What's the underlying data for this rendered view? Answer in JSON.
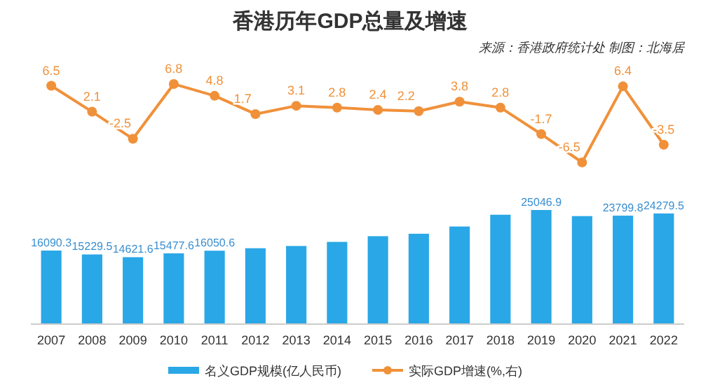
{
  "chart_data": [
    {
      "type": "line",
      "title": "香港历年GDP总量及增速",
      "annotations": [
        "来源：香港政府统计处  制图：北海居"
      ],
      "categories": [
        null,
        null,
        null,
        null,
        null,
        null,
        null,
        null,
        null,
        null,
        null,
        null,
        null,
        null,
        null,
        null
      ],
      "series": [
        {
          "name": "实际GDP增速(%,右)",
          "color": "#f0913a",
          "values": [
            6.5,
            2.1,
            -2.5,
            6.8,
            4.8,
            1.7,
            3.1,
            2.8,
            2.4,
            2.2,
            3.8,
            2.8,
            -1.7,
            -6.5,
            6.4,
            -3.5
          ]
        }
      ],
      "data_labels": true,
      "marker": "circle",
      "legend": "bottom",
      "grid": false
    },
    {
      "type": "bar",
      "categories": [
        "2007",
        "2008",
        "2009",
        "2010",
        "2011",
        "2012",
        "2013",
        "2014",
        "2015",
        "2016",
        "2017",
        "2018",
        "2019",
        "2020",
        "2021",
        "2022"
      ],
      "series": [
        {
          "name": "名义GDP规模(亿人民币)",
          "color": "#2aa7e6",
          "values": [
            16090.3,
            15229.5,
            14621.6,
            15477.6,
            16050.6,
            16600,
            17100,
            18000,
            19265,
            19800,
            21400,
            24000,
            25046.9,
            23700,
            23799.8,
            24279.5
          ],
          "value_labels": [
            "16090.3",
            "15229.5",
            "14621.6",
            "15477.6",
            "16050.6",
            null,
            null,
            null,
            null,
            null,
            null,
            null,
            "25046.9",
            null,
            "23799.8",
            "24279.5"
          ]
        }
      ],
      "tick_labels": "x",
      "legend": "bottom",
      "grid": false
    }
  ]
}
